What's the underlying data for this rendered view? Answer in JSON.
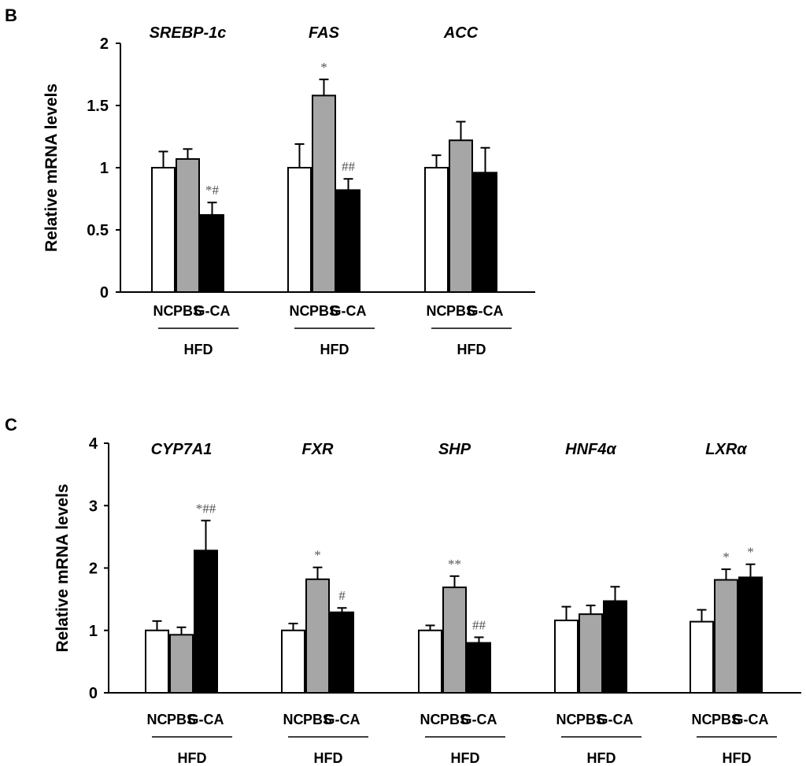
{
  "chart_data": [
    {
      "type": "bar",
      "panel": "B",
      "ylabel": "Relative mRNA levels",
      "ylim": [
        0,
        2
      ],
      "yticks": [
        0,
        0.5,
        1,
        1.5,
        2
      ],
      "ytick_labels": [
        "0",
        "0.5",
        "1",
        "1.5",
        "2"
      ],
      "categories": [
        "NC",
        "PBS",
        "G-CA"
      ],
      "group_label": "HFD",
      "series_colors": [
        "#ffffff",
        "#a6a6a6",
        "#000000"
      ],
      "genes": [
        {
          "name": "SREBP-1c",
          "values": [
            1.0,
            1.07,
            0.62
          ],
          "errors": [
            0.13,
            0.08,
            0.1
          ],
          "annotations": [
            "",
            "",
            "*#"
          ]
        },
        {
          "name": "FAS",
          "values": [
            1.0,
            1.58,
            0.82
          ],
          "errors": [
            0.19,
            0.13,
            0.09
          ],
          "annotations": [
            "",
            "*",
            "##"
          ]
        },
        {
          "name": "ACC",
          "values": [
            1.0,
            1.22,
            0.96
          ],
          "errors": [
            0.1,
            0.15,
            0.2
          ],
          "annotations": [
            "",
            "",
            ""
          ]
        }
      ]
    },
    {
      "type": "bar",
      "panel": "C",
      "ylabel": "Relative mRNA levels",
      "ylim": [
        0,
        4
      ],
      "yticks": [
        0,
        1,
        2,
        3,
        4
      ],
      "ytick_labels": [
        "0",
        "1",
        "2",
        "3",
        "4"
      ],
      "categories": [
        "NC",
        "PBS",
        "G-CA"
      ],
      "group_label": "HFD",
      "series_colors": [
        "#ffffff",
        "#a6a6a6",
        "#000000"
      ],
      "genes": [
        {
          "name": "CYP7A1",
          "values": [
            1.0,
            0.93,
            2.28
          ],
          "errors": [
            0.15,
            0.12,
            0.48
          ],
          "annotations": [
            "",
            "",
            "*##"
          ]
        },
        {
          "name": "FXR",
          "values": [
            1.0,
            1.82,
            1.29
          ],
          "errors": [
            0.11,
            0.19,
            0.07
          ],
          "annotations": [
            "",
            "*",
            "#"
          ]
        },
        {
          "name": "SHP",
          "values": [
            1.0,
            1.69,
            0.8
          ],
          "errors": [
            0.08,
            0.18,
            0.09
          ],
          "annotations": [
            "",
            "**",
            "##"
          ]
        },
        {
          "name": "HNF4α",
          "values": [
            1.16,
            1.26,
            1.47
          ],
          "errors": [
            0.22,
            0.14,
            0.23
          ],
          "annotations": [
            "",
            "",
            ""
          ]
        },
        {
          "name": "LXRα",
          "values": [
            1.14,
            1.81,
            1.85
          ],
          "errors": [
            0.19,
            0.17,
            0.21
          ],
          "annotations": [
            "",
            "*",
            "*"
          ]
        }
      ]
    }
  ]
}
